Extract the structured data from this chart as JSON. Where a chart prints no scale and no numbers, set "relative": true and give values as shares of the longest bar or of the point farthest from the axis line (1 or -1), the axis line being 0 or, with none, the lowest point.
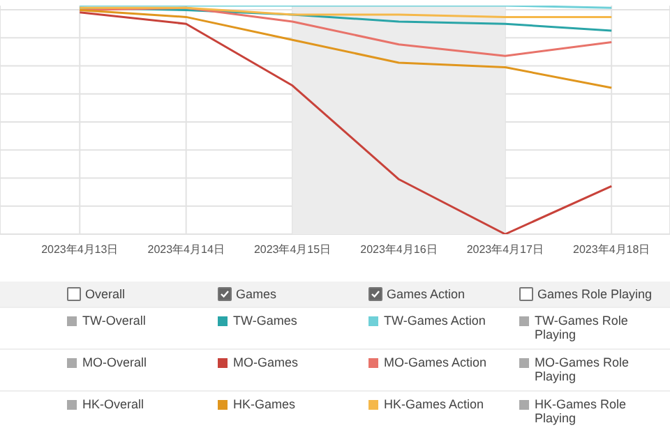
{
  "chart_data": {
    "type": "line",
    "relative": true,
    "grid": true,
    "legend": "bottom",
    "marker": "none",
    "categories": [
      "2023年4月13日",
      "2023年4月14日",
      "2023年4月15日",
      "2023年4月16日",
      "2023年4月17日",
      "2023年4月18日"
    ],
    "bands": [
      {
        "axis": "x",
        "from": "2023年4月15日",
        "to": "2023年4月17日",
        "color": "#ececec"
      }
    ],
    "annotations": [
      "Overall",
      "Games",
      "Games Action",
      "Games Role Playing"
    ],
    "series": [
      {
        "name": "TW-Overall",
        "color": "#aaaaaa",
        "values": [
          null,
          null,
          null,
          null,
          null,
          null
        ]
      },
      {
        "name": "TW-Games",
        "color": "#2aa5a8",
        "values": [
          0.99,
          0.98,
          0.96,
          0.93,
          0.92,
          0.89
        ]
      },
      {
        "name": "TW-Games Action",
        "color": "#6fd0d8",
        "values": [
          1,
          1,
          1,
          1,
          1,
          0.99
        ]
      },
      {
        "name": "TW-Games Role Playing",
        "color": "#aaaaaa",
        "values": [
          null,
          null,
          null,
          null,
          null,
          null
        ]
      },
      {
        "name": "MO-Overall",
        "color": "#aaaaaa",
        "values": [
          null,
          null,
          null,
          null,
          null,
          null
        ]
      },
      {
        "name": "MO-Games",
        "color": "#c8423a",
        "values": [
          0.97,
          0.92,
          0.65,
          0.24,
          0,
          0.21
        ]
      },
      {
        "name": "MO-Games Action",
        "color": "#e8736a",
        "values": [
          0.98,
          0.99,
          0.93,
          0.83,
          0.78,
          0.84
        ]
      },
      {
        "name": "MO-Games Role Playing",
        "color": "#aaaaaa",
        "values": [
          null,
          null,
          null,
          null,
          null,
          null
        ]
      },
      {
        "name": "HK-Overall",
        "color": "#aaaaaa",
        "values": [
          null,
          null,
          null,
          null,
          null,
          null
        ]
      },
      {
        "name": "HK-Games",
        "color": "#e0961e",
        "values": [
          0.98,
          0.95,
          0.85,
          0.75,
          0.73,
          0.64
        ]
      },
      {
        "name": "HK-Games Action",
        "color": "#f5b84a",
        "values": [
          0.99,
          0.99,
          0.96,
          0.96,
          0.95,
          0.95
        ]
      },
      {
        "name": "HK-Games Role Playing",
        "color": "#aaaaaa",
        "values": [
          null,
          null,
          null,
          null,
          null,
          null
        ]
      }
    ]
  }
}
